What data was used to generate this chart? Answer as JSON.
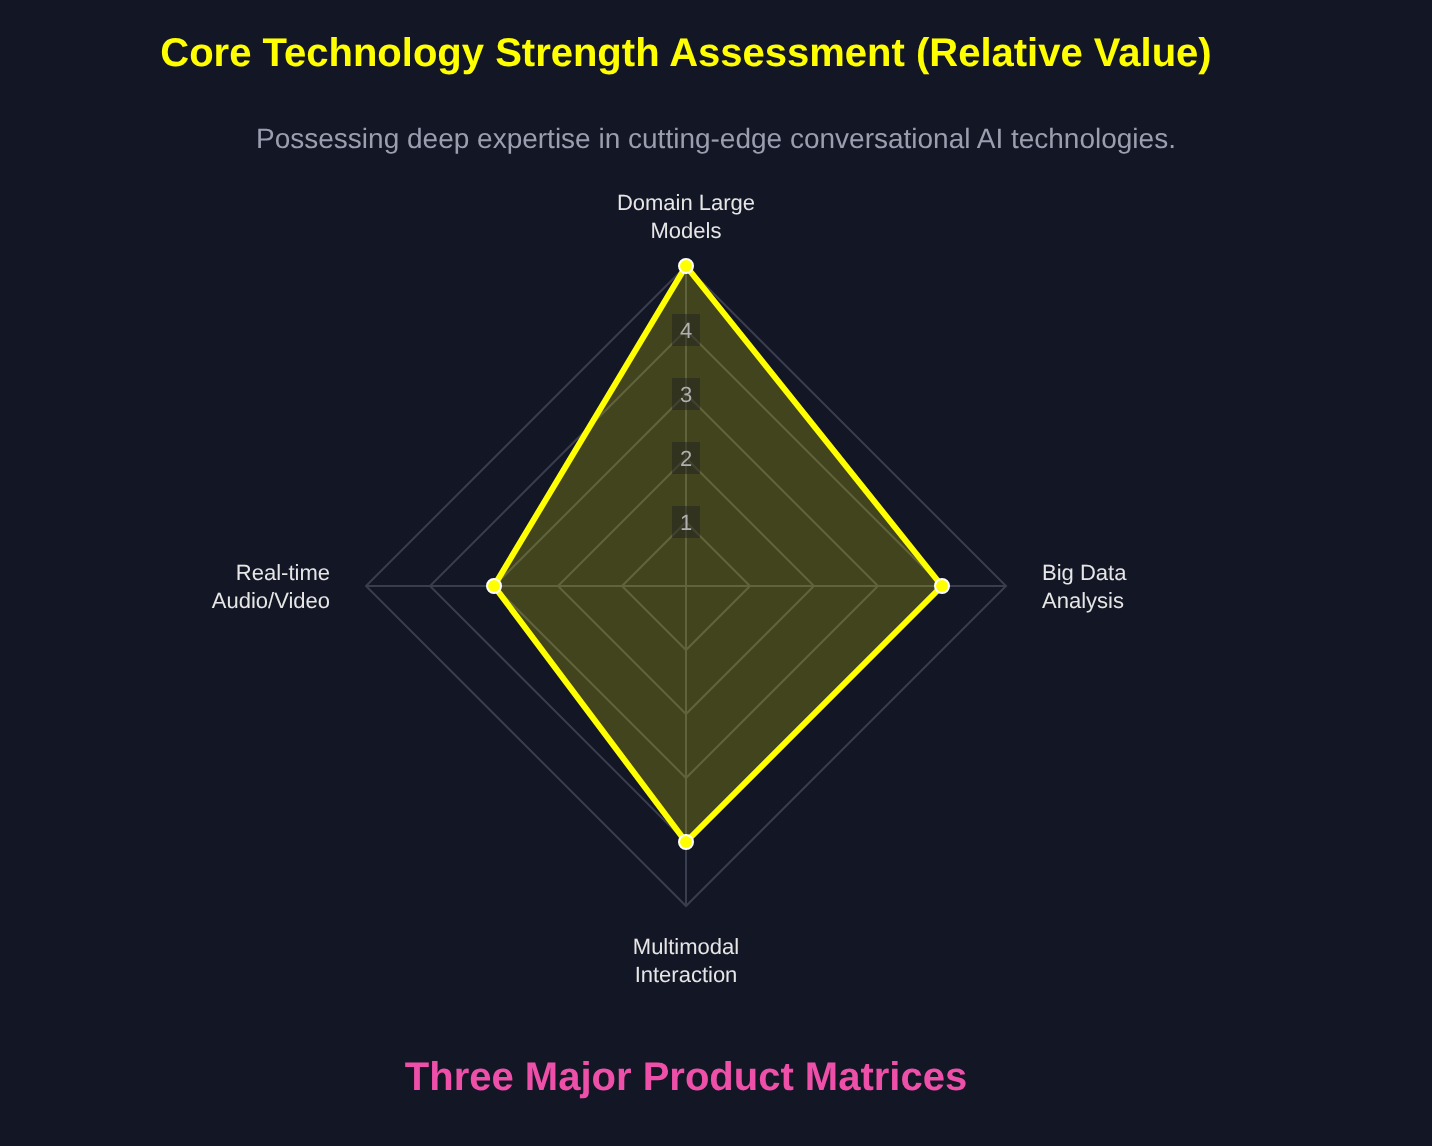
{
  "chart_data": {
    "type": "radar",
    "title": "Core Technology Strength Assessment (Relative Value)",
    "subtitle": "Possessing deep expertise in cutting-edge conversational AI technologies.",
    "categories": [
      "Domain Large Models",
      "Big Data Analysis",
      "Multimodal Interaction",
      "Real-time Audio/Video"
    ],
    "series": [
      {
        "color": "#ffff00",
        "values": [
          5,
          4,
          4,
          3
        ]
      }
    ],
    "ylim": [
      0,
      5
    ],
    "yticks": [
      1,
      2,
      3,
      4
    ],
    "grid": true,
    "marker": "circle",
    "legend": false,
    "annotations": [
      "Three Major Product Matrices"
    ]
  }
}
